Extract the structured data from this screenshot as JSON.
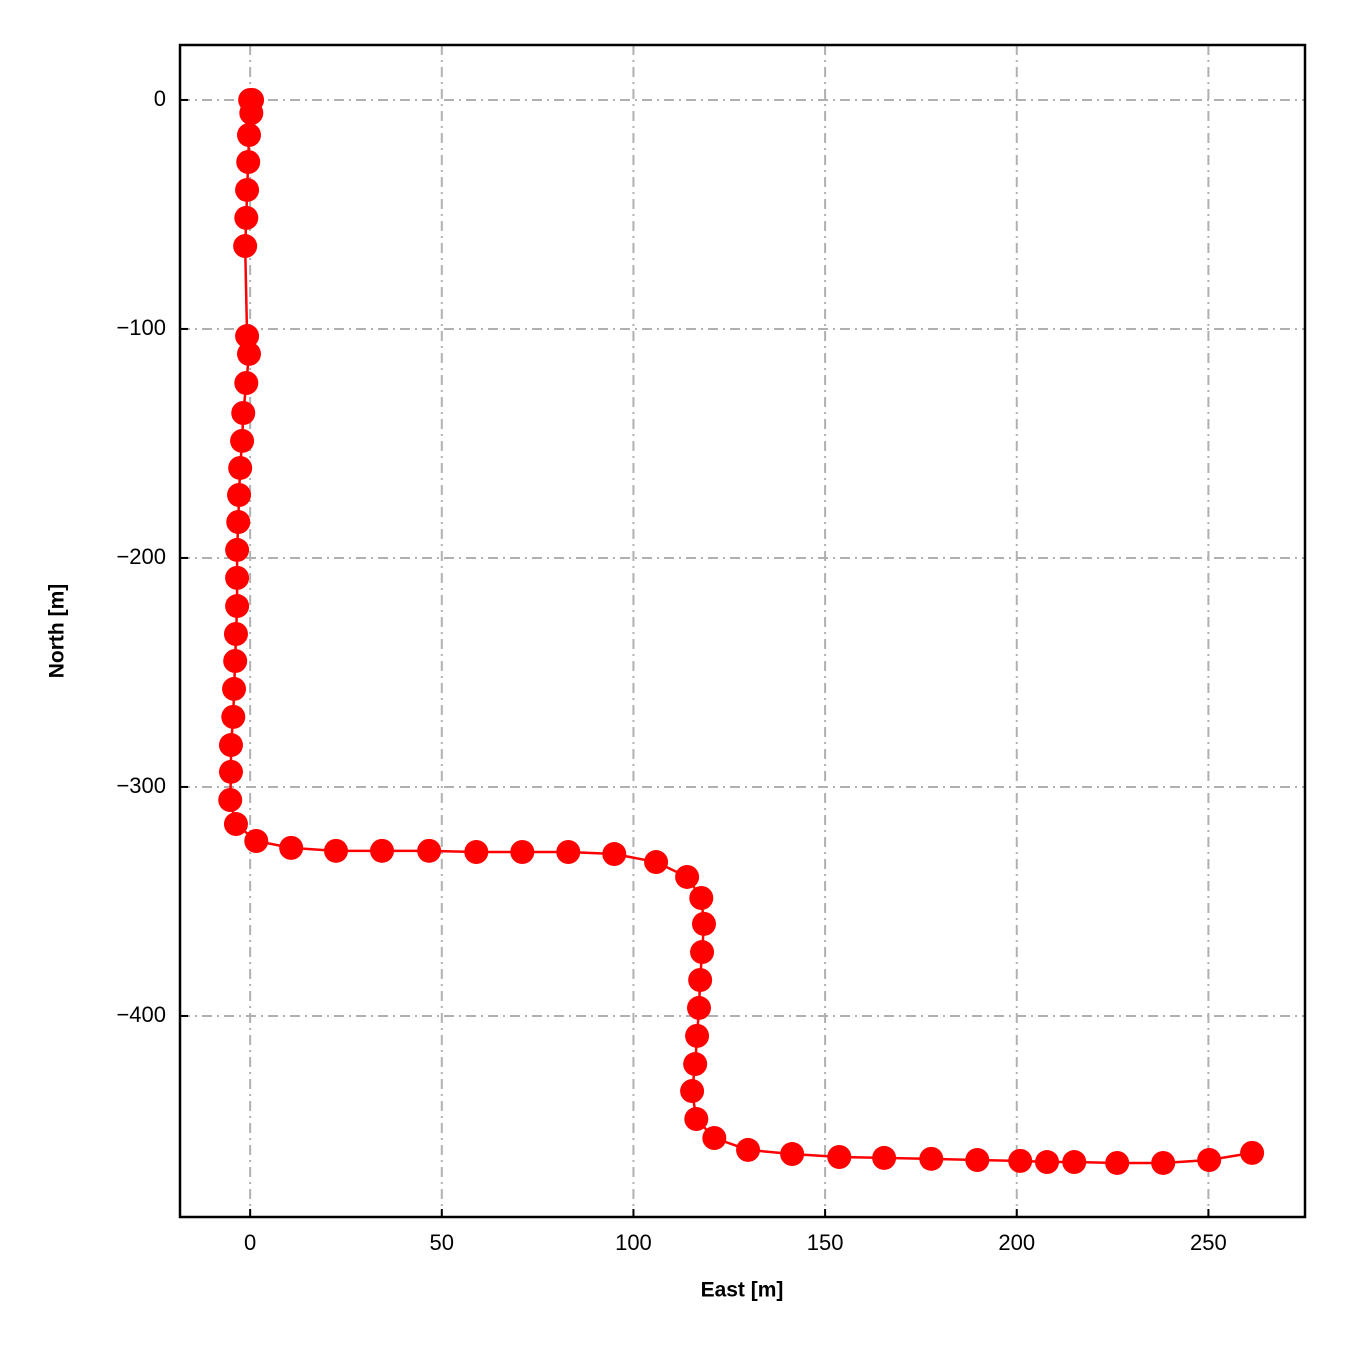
{
  "chart_data": {
    "type": "line",
    "xlabel": "East [m]",
    "ylabel": "North [m]",
    "color": "#ff0000",
    "grid": true,
    "xlim": [
      -18.3,
      275.2
    ],
    "ylim": [
      -487.8,
      24
    ],
    "xticks": [
      0,
      50,
      100,
      150,
      200,
      250
    ],
    "yticks": [
      0,
      {
        "value": -100,
        "label": "−100"
      },
      {
        "value": -200,
        "label": "−200"
      },
      {
        "value": -300,
        "label": "−300"
      },
      {
        "value": -400,
        "label": "−400"
      }
    ],
    "x": [
      0,
      0.5,
      0.3,
      -0.3,
      -0.5,
      -0.8,
      -1.0,
      -1.3,
      -0.8,
      -0.3,
      -1.0,
      -1.8,
      -2.1,
      -2.6,
      -2.9,
      -3.1,
      -3.4,
      -3.4,
      -3.4,
      -3.7,
      -3.9,
      -4.2,
      -4.4,
      -5.0,
      -5.0,
      -5.2,
      -3.7,
      1.6,
      10.7,
      22.4,
      34.4,
      46.7,
      59.0,
      71.0,
      83.0,
      95.0,
      105.9,
      114.0,
      117.7,
      118.4,
      117.9,
      117.4,
      117.1,
      116.6,
      116.1,
      115.3,
      116.4,
      121.1,
      129.9,
      141.4,
      153.7,
      165.4,
      177.7,
      189.7,
      200.9,
      207.9,
      215.0,
      226.2,
      238.2,
      250.2,
      261.4
    ],
    "values": [
      0,
      0,
      -5.7,
      -15.3,
      -27.1,
      -39.3,
      -51.5,
      -63.8,
      -103.1,
      -110.9,
      -123.6,
      -136.7,
      -148.9,
      -160.7,
      -172.5,
      -184.3,
      -196.5,
      -208.7,
      -221.0,
      -233.2,
      -245.0,
      -257.2,
      -269.4,
      -281.7,
      -293.4,
      -305.7,
      -316.2,
      -323.6,
      -326.6,
      -327.9,
      -327.9,
      -327.9,
      -328.4,
      -328.4,
      -328.4,
      -329.3,
      -332.8,
      -339.3,
      -348.5,
      -359.8,
      -372.1,
      -384.3,
      -396.5,
      -408.7,
      -421.0,
      -432.8,
      -445.0,
      -453.3,
      -458.5,
      -460.3,
      -461.6,
      -462.0,
      -462.4,
      -462.9,
      -463.3,
      -463.8,
      -463.8,
      -464.2,
      -464.2,
      -462.9,
      -459.8
    ]
  }
}
